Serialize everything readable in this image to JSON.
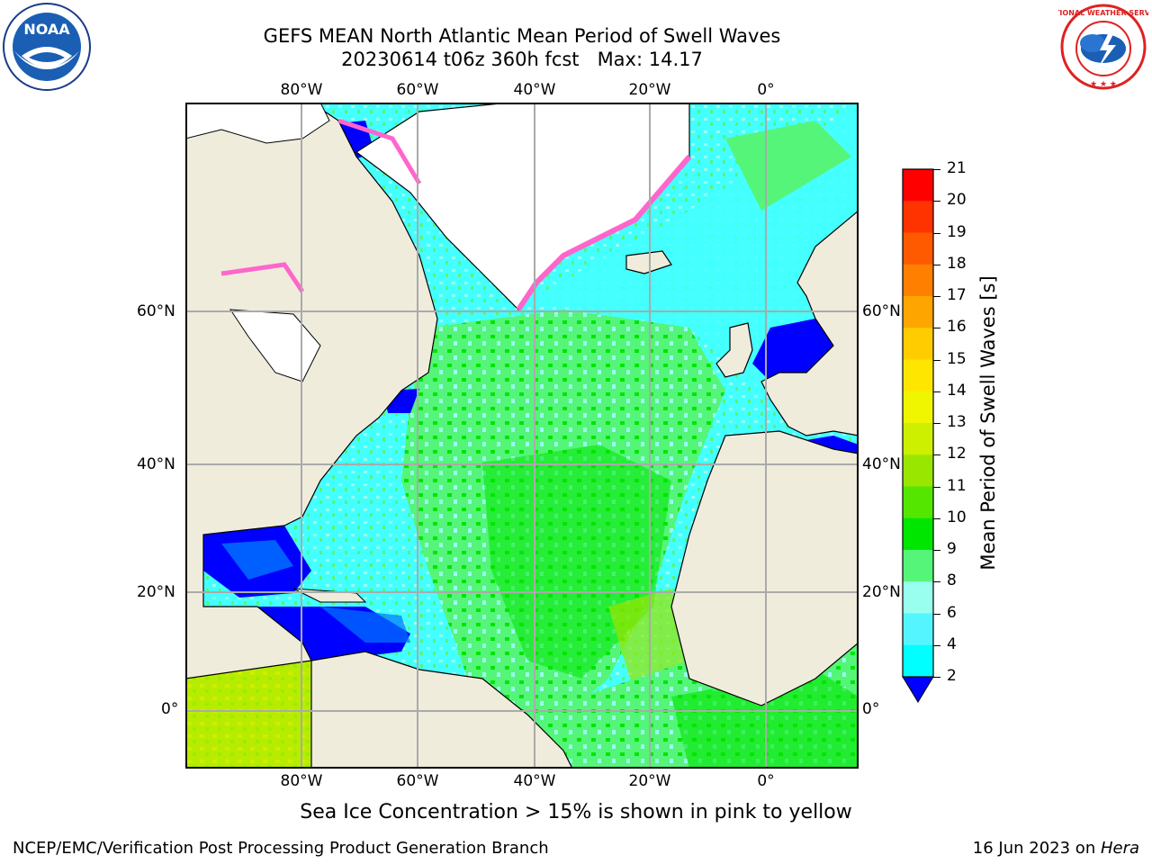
{
  "title": {
    "line1": "GEFS MEAN North Atlantic Mean Period of Swell Waves",
    "line2": "20230614 t06z 360h fcst   Max: 14.17"
  },
  "lon_labels": [
    "80°W",
    "60°W",
    "40°W",
    "20°W",
    "0°"
  ],
  "lat_labels": [
    "60°N",
    "40°N",
    "20°N",
    "0°"
  ],
  "colorbar": {
    "label": "Mean Period of Swell Waves [s]",
    "ticks": [
      "21",
      "20",
      "19",
      "18",
      "17",
      "16",
      "15",
      "14",
      "13",
      "12",
      "11",
      "10",
      "9",
      "8",
      "6",
      "4",
      "2"
    ],
    "colors": [
      "#ff0000",
      "#ff3300",
      "#ff5a00",
      "#ff7f00",
      "#ffa500",
      "#ffcc00",
      "#ffe600",
      "#f0f500",
      "#ccf000",
      "#99e600",
      "#55e600",
      "#00e600",
      "#55f57a",
      "#99ffee",
      "#55f5ff",
      "#00ffff",
      "#00e0f0",
      "#0077ff"
    ],
    "extend_color": "#0000ff"
  },
  "ice_note": "Sea Ice Concentration > 15% is shown in pink to yellow",
  "footer": {
    "left": "NCEP/EMC/Verification Post Processing Product Generation Branch",
    "right_date": "16 Jun 2023 on ",
    "right_host": "Hera"
  },
  "logos": {
    "noaa": "NOAA",
    "nws": "NATIONAL WEATHER SERVICE"
  },
  "colors": {
    "land": "#efecdc",
    "ice_shelf": "#ffffff",
    "ocean_main": "#44ffff",
    "ocean_green": "#55f57a",
    "ocean_green2": "#00e600",
    "ocean_yellow": "#ccf000",
    "ocean_blue": "#0000ff",
    "ice_pink": "#ff66cc"
  }
}
